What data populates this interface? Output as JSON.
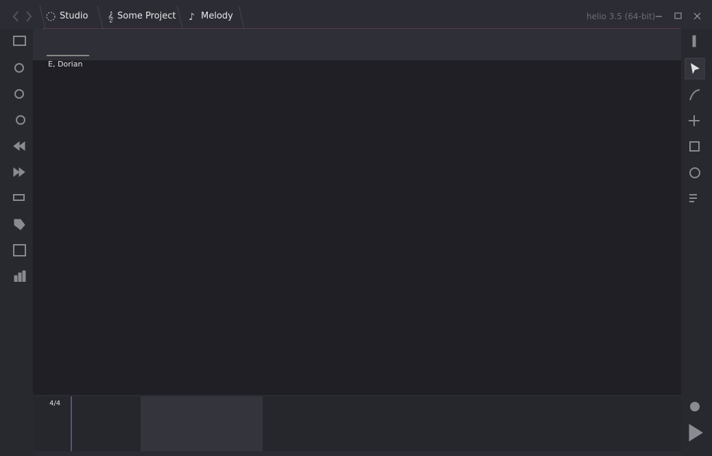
{
  "header": {
    "tabs": [
      "Studio",
      "Some Project",
      "Melody"
    ],
    "app_title": "helio 3.5 (64-bit)"
  },
  "roll": {
    "key_label": "E, Dorian"
  },
  "minimap": {
    "meter": "4/4"
  }
}
